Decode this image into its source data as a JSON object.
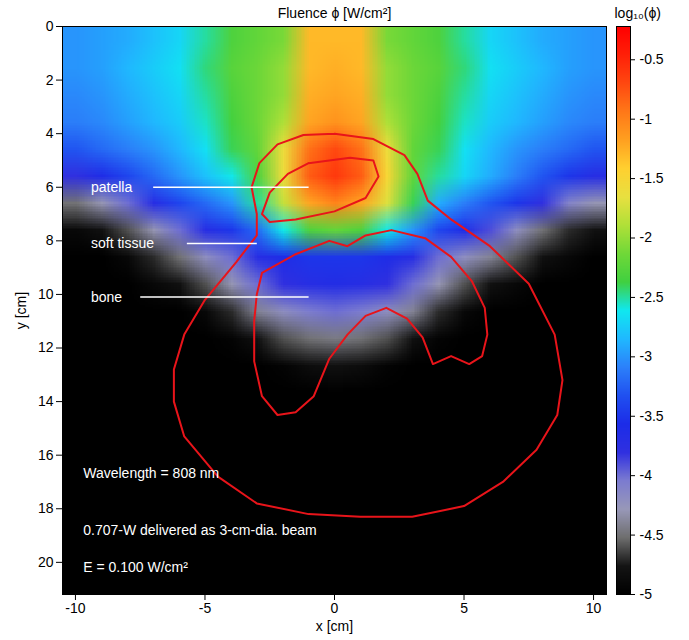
{
  "chart_data": {
    "type": "heatmap",
    "title": "Fluence ϕ [W/cm²]",
    "x_label": "x [cm]",
    "y_label": "y [cm]",
    "xlim": [
      -10.5,
      10.5
    ],
    "xticks": [
      -10,
      -5,
      0,
      5,
      10
    ],
    "ylim": [
      0,
      21.2
    ],
    "yticks": [
      0,
      2,
      4,
      6,
      8,
      10,
      12,
      14,
      16,
      18,
      20
    ],
    "cells": [
      [
        -3.0,
        -2.95,
        -2.9,
        -2.8,
        -2.7,
        -2.5,
        -2.3,
        -2.2,
        -2.1,
        -1.3,
        -1.3,
        -1.3,
        -2.1,
        -2.2,
        -2.3,
        -2.5,
        -2.7,
        -2.8,
        -2.9,
        -2.95,
        -3.0
      ],
      [
        -3.0,
        -2.95,
        -2.85,
        -2.75,
        -2.65,
        -2.45,
        -2.25,
        -2.15,
        -2.0,
        -1.3,
        -1.25,
        -1.3,
        -2.0,
        -2.15,
        -2.25,
        -2.45,
        -2.65,
        -2.75,
        -2.85,
        -2.95,
        -3.0
      ],
      [
        -3.05,
        -3.0,
        -2.9,
        -2.8,
        -2.7,
        -2.5,
        -2.3,
        -2.15,
        -2.0,
        -1.25,
        -1.2,
        -1.25,
        -2.0,
        -2.15,
        -2.3,
        -2.5,
        -2.7,
        -2.8,
        -2.9,
        -3.0,
        -3.05
      ],
      [
        -3.1,
        -3.05,
        -2.95,
        -2.85,
        -2.75,
        -2.55,
        -2.35,
        -2.15,
        -1.9,
        -1.2,
        -1.1,
        -1.2,
        -1.9,
        -2.15,
        -2.35,
        -2.55,
        -2.75,
        -2.85,
        -2.95,
        -3.05,
        -3.1
      ],
      [
        -3.3,
        -3.2,
        -3.1,
        -3.0,
        -2.85,
        -2.65,
        -2.4,
        -2.2,
        -1.6,
        -0.9,
        -0.7,
        -0.9,
        -1.6,
        -2.2,
        -2.4,
        -2.65,
        -2.85,
        -3.0,
        -3.1,
        -3.2,
        -3.3
      ],
      [
        -3.8,
        -3.6,
        -3.4,
        -3.2,
        -3.0,
        -2.8,
        -2.6,
        -2.3,
        -1.6,
        -0.8,
        -0.6,
        -0.8,
        -1.5,
        -2.2,
        -2.5,
        -2.7,
        -2.9,
        -3.1,
        -3.3,
        -3.5,
        -3.7
      ],
      [
        -4.5,
        -4.3,
        -4.0,
        -3.7,
        -3.4,
        -3.2,
        -3.0,
        -2.5,
        -1.8,
        -1.2,
        -1.0,
        -1.2,
        -1.7,
        -2.4,
        -2.9,
        -3.1,
        -3.3,
        -3.5,
        -3.8,
        -4.1,
        -4.3
      ],
      [
        -4.9,
        -4.8,
        -4.6,
        -4.3,
        -4.0,
        -3.7,
        -3.5,
        -3.2,
        -2.6,
        -2.3,
        -2.2,
        -2.3,
        -2.6,
        -3.0,
        -3.4,
        -3.6,
        -3.9,
        -4.2,
        -4.5,
        -4.7,
        -4.8
      ],
      [
        -5,
        -5,
        -4.9,
        -4.7,
        -4.5,
        -4.2,
        -4.0,
        -3.7,
        -3.6,
        -3.5,
        -3.5,
        -3.5,
        -3.6,
        -3.7,
        -4.0,
        -4.2,
        -4.4,
        -4.6,
        -4.8,
        -4.9,
        -5
      ],
      [
        -5,
        -5,
        -5,
        -4.9,
        -4.8,
        -4.6,
        -4.3,
        -4.0,
        -3.8,
        -3.7,
        -3.65,
        -3.7,
        -3.8,
        -4.0,
        -4.3,
        -4.6,
        -4.8,
        -4.9,
        -5,
        -5,
        -5
      ],
      [
        -5,
        -5,
        -5,
        -5,
        -5,
        -4.9,
        -4.7,
        -4.4,
        -4.2,
        -4.05,
        -4.0,
        -4.05,
        -4.2,
        -4.4,
        -4.7,
        -4.9,
        -5,
        -5,
        -5,
        -5,
        -5
      ],
      [
        -5,
        -5,
        -5,
        -5,
        -5,
        -5,
        -4.95,
        -4.8,
        -4.6,
        -4.5,
        -4.45,
        -4.5,
        -4.6,
        -4.8,
        -4.95,
        -5,
        -5,
        -5,
        -5,
        -5,
        -5
      ],
      [
        -5,
        -5,
        -5,
        -5,
        -5,
        -5,
        -5,
        -5,
        -4.95,
        -4.85,
        -4.8,
        -4.85,
        -4.95,
        -5,
        -5,
        -5,
        -5,
        -5,
        -5,
        -5,
        -5
      ],
      [
        -5,
        -5,
        -5,
        -5,
        -5,
        -5,
        -5,
        -5,
        -5,
        -5,
        -5,
        -5,
        -5,
        -5,
        -5,
        -5,
        -5,
        -5,
        -5,
        -5,
        -5
      ],
      [
        -5,
        -5,
        -5,
        -5,
        -5,
        -5,
        -5,
        -5,
        -5,
        -5,
        -5,
        -5,
        -5,
        -5,
        -5,
        -5,
        -5,
        -5,
        -5,
        -5,
        -5
      ],
      [
        -5,
        -5,
        -5,
        -5,
        -5,
        -5,
        -5,
        -5,
        -5,
        -5,
        -5,
        -5,
        -5,
        -5,
        -5,
        -5,
        -5,
        -5,
        -5,
        -5,
        -5
      ],
      [
        -5,
        -5,
        -5,
        -5,
        -5,
        -5,
        -5,
        -5,
        -5,
        -5,
        -5,
        -5,
        -5,
        -5,
        -5,
        -5,
        -5,
        -5,
        -5,
        -5,
        -5
      ],
      [
        -5,
        -5,
        -5,
        -5,
        -5,
        -5,
        -5,
        -5,
        -5,
        -5,
        -5,
        -5,
        -5,
        -5,
        -5,
        -5,
        -5,
        -5,
        -5,
        -5,
        -5
      ],
      [
        -5,
        -5,
        -5,
        -5,
        -5,
        -5,
        -5,
        -5,
        -5,
        -5,
        -5,
        -5,
        -5,
        -5,
        -5,
        -5,
        -5,
        -5,
        -5,
        -5,
        -5
      ],
      [
        -5,
        -5,
        -5,
        -5,
        -5,
        -5,
        -5,
        -5,
        -5,
        -5,
        -5,
        -5,
        -5,
        -5,
        -5,
        -5,
        -5,
        -5,
        -5,
        -5,
        -5
      ],
      [
        -5,
        -5,
        -5,
        -5,
        -5,
        -5,
        -5,
        -5,
        -5,
        -5,
        -5,
        -5,
        -5,
        -5,
        -5,
        -5,
        -5,
        -5,
        -5,
        -5,
        -5
      ]
    ],
    "colorbar": {
      "label": "log₁₀(ϕ)",
      "lim": [
        -5,
        -0.22
      ],
      "ticks": [
        -5,
        -4.5,
        -4,
        -3.5,
        -3,
        -2.5,
        -2,
        -1.5,
        -1,
        -0.5
      ]
    },
    "contours": [
      {
        "color": "#e8141a",
        "x": [
          0,
          1.5,
          2.7,
          3.2,
          3.6,
          4.5,
          6,
          7.5,
          8.5,
          8.8,
          8.6,
          7.8,
          6.5,
          5,
          3,
          1,
          -1,
          -3,
          -4.5,
          -5.8,
          -6.2,
          -6.2,
          -5.8,
          -5,
          -3.8,
          -3.0,
          -3.0,
          -3.2,
          -2.9,
          -2.2,
          -1.2,
          0
        ],
        "y": [
          4.0,
          4.2,
          4.8,
          5.5,
          6.5,
          7.2,
          8.2,
          9.6,
          11.5,
          13.2,
          14.5,
          15.8,
          17,
          17.9,
          18.3,
          18.3,
          18.2,
          17.8,
          16.8,
          15.3,
          14,
          12.8,
          11.5,
          10.2,
          8.8,
          7.8,
          7,
          6,
          5.1,
          4.4,
          4.05,
          4.0
        ]
      },
      {
        "color": "#e8141a",
        "x": [
          -1,
          0.6,
          1.5,
          1.7,
          1.2,
          0,
          -1.5,
          -2.5,
          -2.8,
          -2.5,
          -1.8,
          -1
        ],
        "y": [
          5.1,
          4.9,
          5.0,
          5.6,
          6.4,
          6.9,
          7.2,
          7.3,
          7.0,
          6.2,
          5.5,
          5.1
        ]
      },
      {
        "color": "#e8141a",
        "x": [
          -2.8,
          -1.5,
          -0.2,
          0.5,
          1.2,
          2.2,
          3.5,
          4.5,
          5.3,
          5.8,
          5.9,
          5.7,
          5.2,
          4.5,
          3.8,
          3.4,
          2.8,
          2,
          1.2,
          0.5,
          -0.2,
          -0.8,
          -1.5,
          -2.2,
          -2.8,
          -3.1,
          -3.1,
          -3,
          -2.8
        ],
        "y": [
          9.2,
          8.5,
          8.0,
          8.2,
          7.8,
          7.6,
          7.9,
          8.6,
          9.5,
          10.5,
          11.5,
          12.3,
          12.6,
          12.3,
          12.6,
          11.6,
          10.9,
          10.5,
          10.8,
          11.5,
          12.4,
          13.8,
          14.4,
          14.5,
          13.8,
          12.5,
          11,
          10,
          9.2
        ]
      }
    ],
    "annotations": [
      {
        "text": "patella",
        "x": -9.4,
        "y": 6.0,
        "line_x1": -7.0,
        "line_x2": -1.0
      },
      {
        "text": "soft tissue",
        "x": -9.4,
        "y": 8.1,
        "line_x1": -5.7,
        "line_x2": -3.0
      },
      {
        "text": "bone",
        "x": -9.4,
        "y": 10.1,
        "line_x1": -7.5,
        "line_x2": -1.0
      }
    ],
    "notes": [
      {
        "text": "Wavelength = 808 nm",
        "x": -9.7,
        "y": 16.7
      },
      {
        "text": "0.707-W delivered as 3-cm-dia. beam",
        "x": -9.7,
        "y": 18.8
      },
      {
        "text": "E = 0.100 W/cm²",
        "x": -9.7,
        "y": 20.2
      }
    ]
  }
}
